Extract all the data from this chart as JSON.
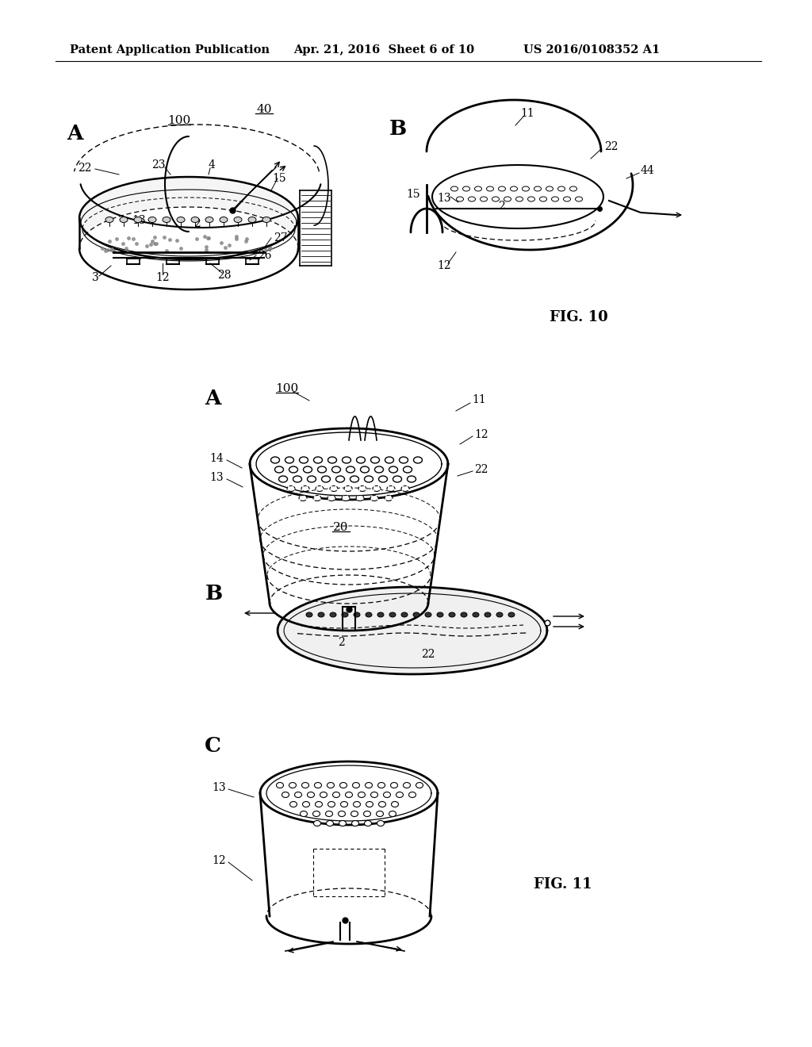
{
  "background_color": "#ffffff",
  "header_text": "Patent Application Publication",
  "header_date": "Apr. 21, 2016  Sheet 6 of 10",
  "header_patent": "US 2016/0108352 A1",
  "fig10_label": "FIG. 10",
  "fig11_label": "FIG. 11",
  "header_font_size": 10.5,
  "ref_font_size": 10,
  "fig_label_font_size": 13
}
